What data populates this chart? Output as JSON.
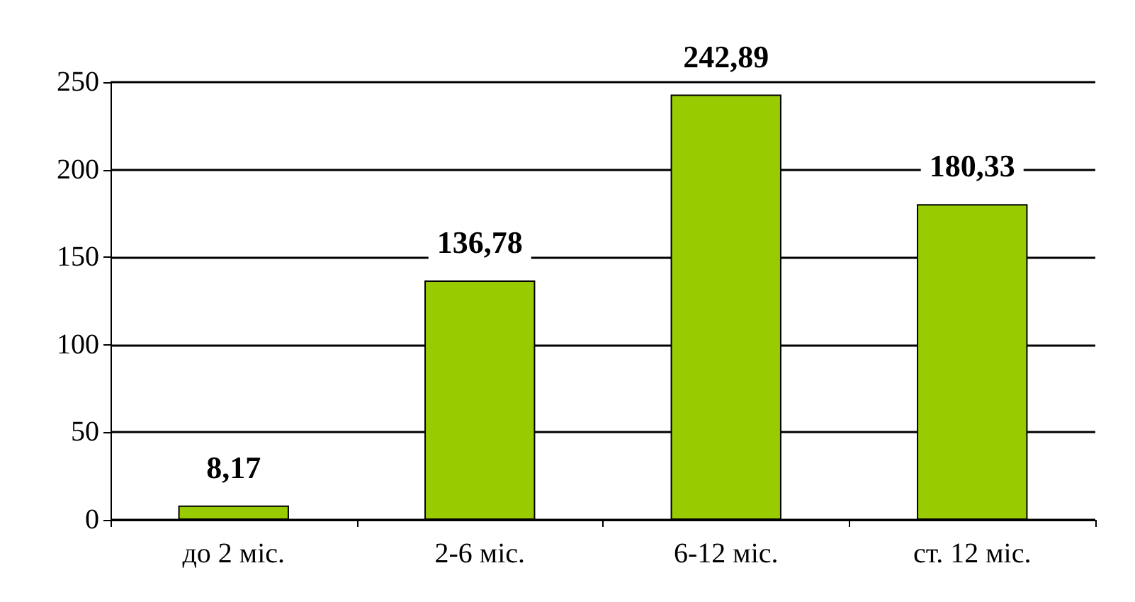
{
  "chart_data": {
    "type": "bar",
    "categories": [
      "до 2 міс.",
      "2-6 міс.",
      "6-12 міс.",
      "ст. 12 міс."
    ],
    "values": [
      8.17,
      136.78,
      242.89,
      180.33
    ],
    "value_labels": [
      "8,17",
      "136,78",
      "242,89",
      "180,33"
    ],
    "color": "#99cc00",
    "ylim": [
      0,
      250
    ],
    "yticks": [
      0,
      50,
      100,
      150,
      200,
      250
    ],
    "grid": "y"
  }
}
